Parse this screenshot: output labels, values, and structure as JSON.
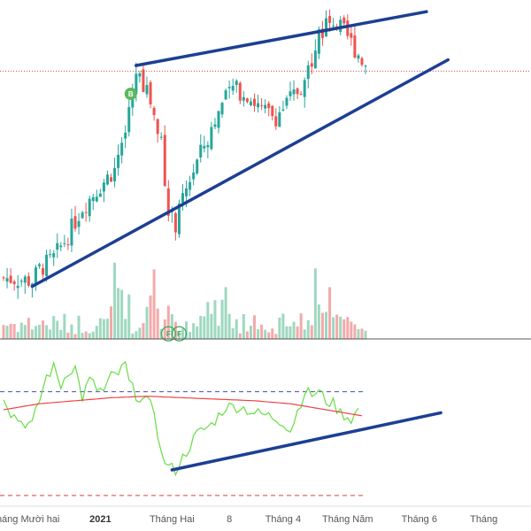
{
  "chart_data": {
    "type": "candlestick",
    "x_axis": {
      "labels": [
        {
          "text": "Tháng Mười hai",
          "bar": 6,
          "bold": false
        },
        {
          "text": "2021",
          "bar": 27,
          "bold": true
        },
        {
          "text": "Tháng Hai",
          "bar": 47,
          "bold": false
        },
        {
          "text": "8",
          "bar": 63,
          "bold": false
        },
        {
          "text": "Tháng 4",
          "bar": 78,
          "bold": false
        },
        {
          "text": "Tháng Năm",
          "bar": 96,
          "bold": false
        },
        {
          "text": "Tháng 6",
          "bar": 116,
          "bold": false
        },
        {
          "text": "Tháng",
          "bar": 134,
          "bold": false
        }
      ]
    },
    "price_panel": {
      "ylim": [
        0,
        100
      ],
      "current_price_line": 78,
      "trendlines": [
        {
          "name": "upper-channel",
          "from": [
            37,
            80
          ],
          "to": [
            118,
            99
          ]
        },
        {
          "name": "lower-channel",
          "from": [
            8,
            2
          ],
          "to": [
            124,
            82
          ]
        },
        {
          "name": "upper-start",
          "from": [
            37,
            80
          ],
          "to": [
            37,
            80
          ]
        }
      ],
      "markers": [
        {
          "label": "B",
          "bar": 35,
          "value": 70,
          "color": "#5cb85c"
        }
      ]
    },
    "volume_panel": {
      "ylim": [
        0,
        100
      ],
      "markers": [
        {
          "label": "F",
          "bar": 46,
          "value": 6
        },
        {
          "label": "F",
          "bar": 49,
          "value": 6
        }
      ]
    },
    "indicator_panel": {
      "ylim": [
        0,
        100
      ],
      "upper_level": 72,
      "lower_level": 3,
      "oscillator_color": "#66dd44",
      "signal_color": "#ee4444",
      "trendline": {
        "from": [
          47,
          20
        ],
        "to": [
          122,
          58
        ]
      }
    },
    "colors": {
      "up": "#26a69a",
      "down": "#ef5350",
      "volume_up": "#9fd8c0",
      "volume_down": "#f4a9a9",
      "trendline": "#1c3f94",
      "dotted_price": "#e04040",
      "level": "#3f51b5",
      "lower_level": "#e04040"
    }
  }
}
